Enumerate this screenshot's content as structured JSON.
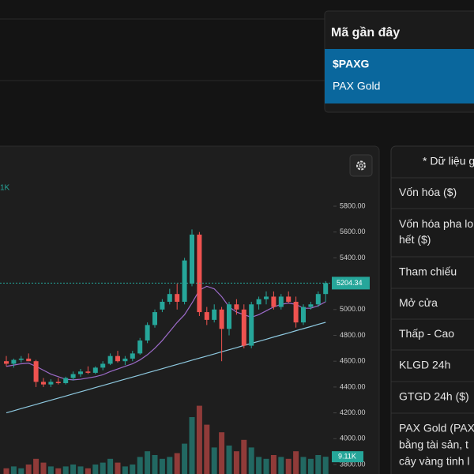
{
  "chart_data": {
    "type": "candlestick",
    "volume_legend": "1K",
    "open": [
      4600,
      4580,
      4610,
      4620,
      4600,
      4440,
      4420,
      4440,
      4430,
      4470,
      4500,
      4520,
      4510,
      4550,
      4580,
      4640,
      4600,
      4620,
      4660,
      4760,
      4880,
      5000,
      5060,
      5120,
      5060,
      5200,
      5580,
      4980,
      4920,
      5000,
      4850,
      5040,
      5000,
      4720,
      5040,
      5080,
      5100,
      5020,
      5100,
      5060,
      4900,
      5020,
      5040,
      5120
    ],
    "high": [
      4640,
      4620,
      4640,
      4660,
      4610,
      4470,
      4460,
      4470,
      4480,
      4520,
      4540,
      4560,
      4560,
      4600,
      4660,
      4680,
      4640,
      4680,
      4780,
      4900,
      5000,
      5080,
      5160,
      5200,
      5400,
      5620,
      5600,
      5020,
      5040,
      5020,
      5060,
      5080,
      5040,
      5060,
      5100,
      5140,
      5140,
      5120,
      5140,
      5100,
      5040,
      5060,
      5140,
      5220
    ],
    "low": [
      4560,
      4550,
      4590,
      4600,
      4400,
      4400,
      4400,
      4420,
      4420,
      4450,
      4480,
      4500,
      4500,
      4530,
      4570,
      4590,
      4570,
      4600,
      4650,
      4740,
      4860,
      4980,
      5040,
      5000,
      5040,
      5180,
      4950,
      4880,
      4900,
      4600,
      4800,
      4960,
      4700,
      4700,
      5000,
      5040,
      5000,
      5000,
      5050,
      4860,
      4880,
      5000,
      5020,
      5060
    ],
    "close": [
      4580,
      4610,
      4620,
      4600,
      4440,
      4420,
      4440,
      4430,
      4470,
      4500,
      4520,
      4510,
      4550,
      4580,
      4640,
      4600,
      4620,
      4660,
      4760,
      4880,
      4980,
      5060,
      5120,
      5060,
      5380,
      5580,
      4980,
      4920,
      5000,
      4850,
      5040,
      5000,
      4720,
      5040,
      5080,
      5100,
      5020,
      5100,
      5060,
      4900,
      5020,
      5040,
      5120,
      5204.34
    ],
    "volume": [
      3,
      4,
      3,
      5,
      8,
      6,
      4,
      3,
      4,
      5,
      4,
      3,
      5,
      6,
      8,
      6,
      4,
      5,
      9,
      12,
      10,
      8,
      9,
      11,
      16,
      30,
      36,
      26,
      14,
      22,
      15,
      12,
      18,
      14,
      9,
      8,
      10,
      9,
      8,
      12,
      9,
      8,
      10,
      9.11
    ],
    "ma_short": [
      4560,
      4570,
      4580,
      4585,
      4560,
      4530,
      4500,
      4480,
      4460,
      4455,
      4460,
      4470,
      4480,
      4495,
      4520,
      4540,
      4560,
      4580,
      4610,
      4650,
      4700,
      4760,
      4830,
      4900,
      4960,
      5050,
      5150,
      5180,
      5160,
      5100,
      5020,
      4980,
      4960,
      4940,
      4960,
      4990,
      5020,
      5040,
      5050,
      5040,
      5010,
      5010,
      5030,
      5060
    ],
    "ma_long": [
      4200,
      4216,
      4233,
      4249,
      4265,
      4282,
      4298,
      4314,
      4330,
      4347,
      4363,
      4379,
      4396,
      4412,
      4428,
      4445,
      4461,
      4477,
      4493,
      4510,
      4526,
      4542,
      4559,
      4575,
      4591,
      4608,
      4624,
      4640,
      4656,
      4673,
      4689,
      4705,
      4722,
      4738,
      4754,
      4770,
      4787,
      4803,
      4819,
      4836,
      4852,
      4868,
      4885,
      4901
    ],
    "ylim": [
      3800,
      5800
    ],
    "yticks": [
      {
        "value": 3800,
        "label": "3800.00"
      },
      {
        "value": 4000,
        "label": "4000.00"
      },
      {
        "value": 4200,
        "label": "4200.00"
      },
      {
        "value": 4400,
        "label": "4400.00"
      },
      {
        "value": 4600,
        "label": "4600.00"
      },
      {
        "value": 4800,
        "label": "4800.00"
      },
      {
        "value": 5000,
        "label": "5000.00"
      },
      {
        "value": 5200,
        "label": "5200.00"
      },
      {
        "value": 5400,
        "label": "5400.00"
      },
      {
        "value": 5600,
        "label": "5600.00"
      },
      {
        "value": 5800,
        "label": "5800.00"
      }
    ],
    "current_price": 5204.34,
    "current_volume": {
      "value": 9.11,
      "label": "9.11K"
    },
    "up_color": "#26a69a",
    "down_color": "#ef5350",
    "ma_short_color": "#9c6bc9",
    "ma_long_color": "#8ec9e0"
  },
  "dropdown": {
    "title": "Mã gần đây",
    "items": [
      {
        "symbol": "$PAXG",
        "name": "PAX Gold"
      }
    ]
  },
  "info_panel": {
    "header": "* Dữ liệu g",
    "rows": [
      [
        "Vốn hóa ($)"
      ],
      [
        "Vốn hóa pha lo",
        "hết ($)"
      ],
      [
        "Tham chiếu"
      ],
      [
        "Mở cửa"
      ],
      [
        "Thấp - Cao"
      ],
      [
        "KLGD 24h"
      ],
      [
        "GTGD 24h ($)"
      ],
      [
        "PAX Gold (PAX",
        "bằng tài sản, t",
        "cây vàng tinh l"
      ]
    ]
  }
}
